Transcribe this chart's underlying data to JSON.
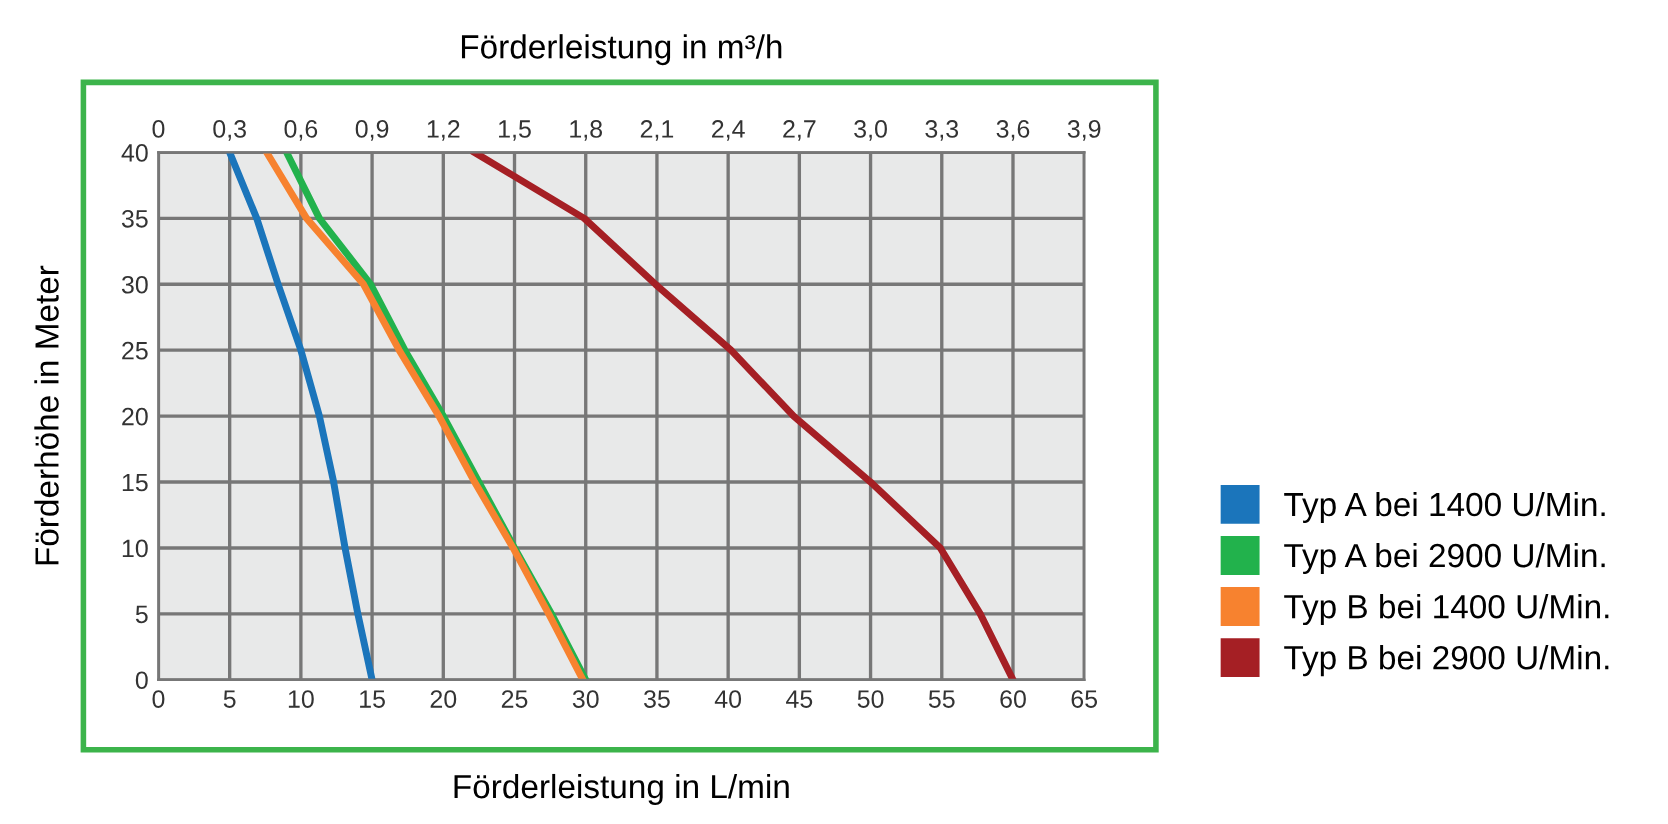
{
  "chart_data": {
    "type": "line",
    "xlabel": "Förderleistung in L/min",
    "ylabel": "Förderhöhe in Meter",
    "x2label": "Förderleistung in m³/h",
    "xlim": [
      0,
      65
    ],
    "xticks": [
      0,
      5,
      10,
      15,
      20,
      25,
      30,
      35,
      40,
      45,
      50,
      55,
      60,
      65
    ],
    "ylim": [
      0,
      40
    ],
    "yticks": [
      0,
      5,
      10,
      15,
      20,
      25,
      30,
      35,
      40
    ],
    "x2lim": [
      0,
      3.9
    ],
    "x2ticks": [
      {
        "value": 0,
        "label": "0"
      },
      {
        "value": 0.3,
        "label": "0,3"
      },
      {
        "value": 0.6,
        "label": "0,6"
      },
      {
        "value": 0.9,
        "label": "0,9"
      },
      {
        "value": 1.2,
        "label": "1,2"
      },
      {
        "value": 1.5,
        "label": "1,5"
      },
      {
        "value": 1.8,
        "label": "1,8"
      },
      {
        "value": 2.1,
        "label": "2,1"
      },
      {
        "value": 2.4,
        "label": "2,4"
      },
      {
        "value": 2.7,
        "label": "2,7"
      },
      {
        "value": 3.0,
        "label": "3,0"
      },
      {
        "value": 3.3,
        "label": "3,3"
      },
      {
        "value": 3.6,
        "label": "3,6"
      },
      {
        "value": 3.9,
        "label": "3,9"
      }
    ],
    "grid": true,
    "legend": "right",
    "marker": "none",
    "line_style": "solid",
    "series": [
      {
        "name": "Typ A bei 1400 U/Min.",
        "color": "#1b75bb",
        "x": [
          5,
          6.9,
          8.4,
          10.0,
          11.3,
          12.3,
          13.1,
          14.0,
          15.0
        ],
        "values": [
          40,
          35,
          30,
          25,
          20,
          15,
          10,
          5,
          0
        ]
      },
      {
        "name": "Typ A bei 2900 U/Min.",
        "color": "#22b24c",
        "x": [
          9.0,
          11.3,
          14.9,
          17.3,
          20.0,
          22.5,
          25.0,
          27.6,
          30.0
        ],
        "values": [
          40,
          35,
          30,
          25,
          20,
          15,
          10,
          5,
          0
        ]
      },
      {
        "name": "Typ B bei 1400 U/Min.",
        "color": "#f7822f",
        "x": [
          7.6,
          10.4,
          14.4,
          16.9,
          19.7,
          22.2,
          24.9,
          27.4,
          29.8
        ],
        "values": [
          40,
          35,
          30,
          25,
          20,
          15,
          10,
          5,
          0
        ]
      },
      {
        "name": "Typ B bei 2900 U/Min.",
        "color": "#a51f24",
        "x": [
          22.2,
          29.9,
          34.9,
          40.2,
          44.6,
          50.0,
          54.9,
          57.7,
          60.0
        ],
        "values": [
          40,
          35,
          30,
          25,
          20,
          15,
          10,
          5,
          0
        ]
      }
    ]
  }
}
